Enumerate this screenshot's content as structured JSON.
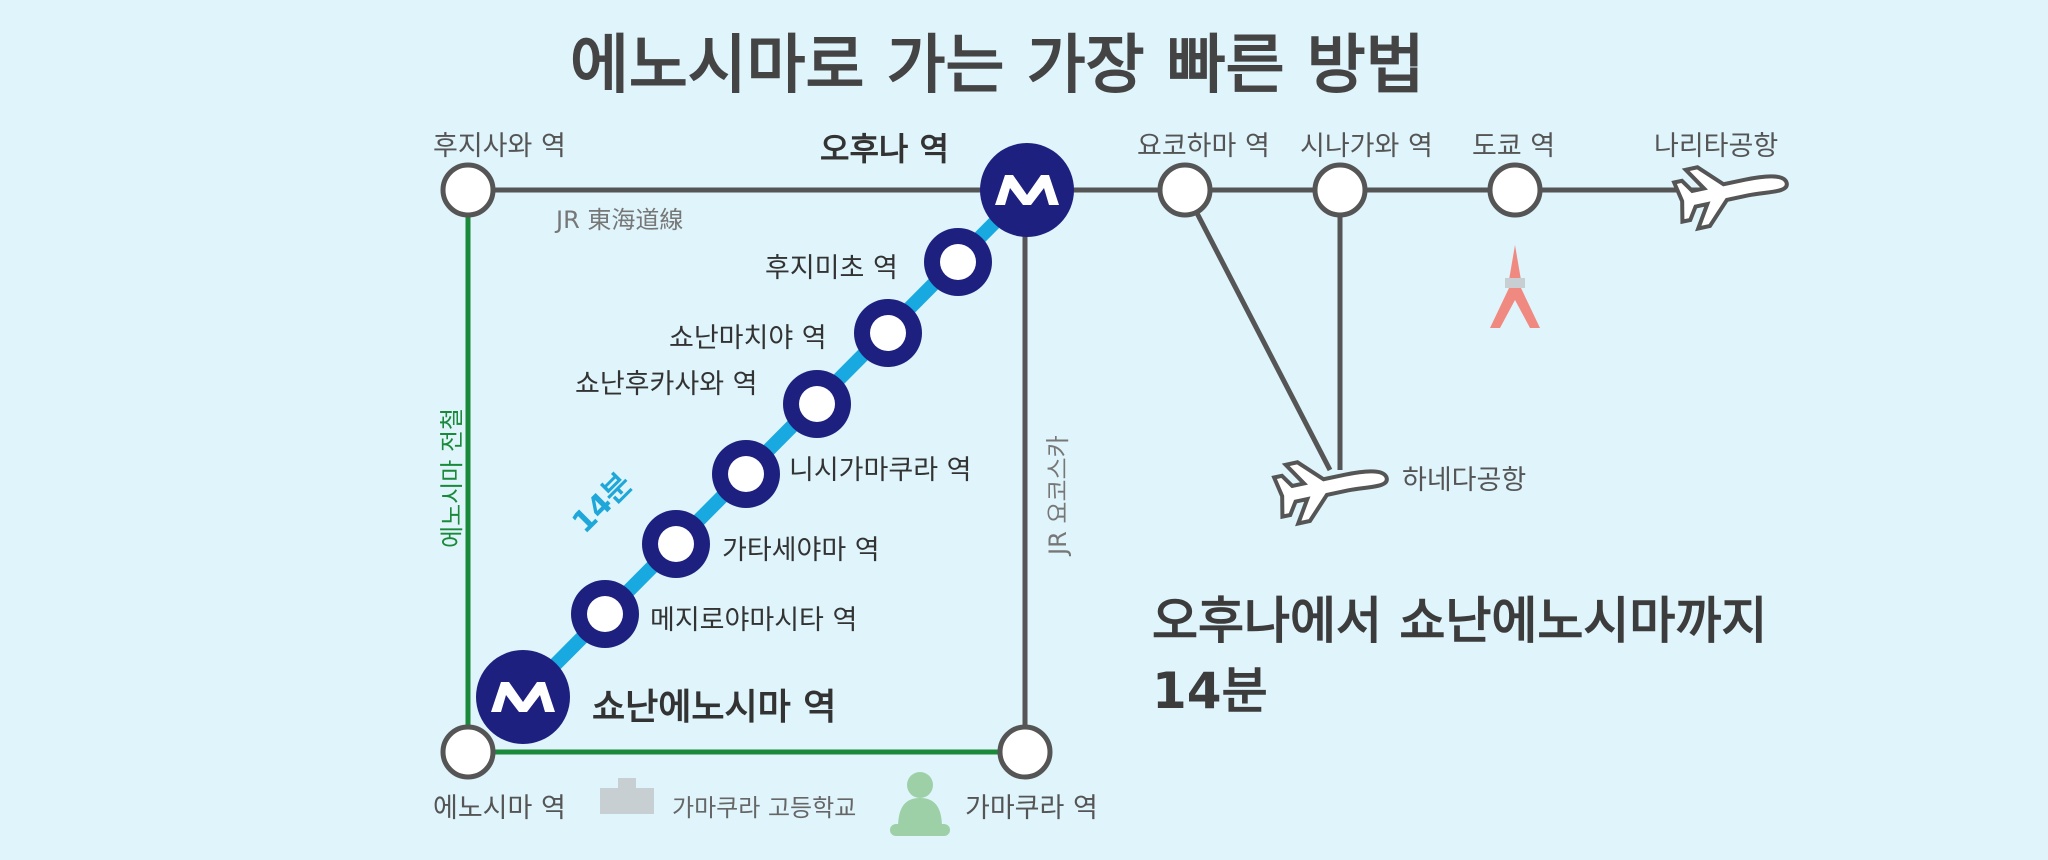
{
  "title": "에노시마로 가는 가장 빠른 방법",
  "summary": {
    "line1": "오후나에서 쇼난에노시마까지",
    "line2": "14분"
  },
  "travel_time": "14분",
  "lines": {
    "jr_tokaido": "JR 東海道線",
    "jr_yokosuka": "JR 요코스카",
    "enoden": "에노시마 전철"
  },
  "stations": {
    "fujisawa": "후지사와 역",
    "ofuna": "오후나 역",
    "yokohama": "요코하마 역",
    "shinagawa": "시나가와 역",
    "tokyo": "도쿄 역",
    "narita": "나리타공항",
    "haneda": "하네다공항",
    "fujimicho": "후지미초 역",
    "shonanmachiya": "쇼난마치야 역",
    "shonanfukasawa": "쇼난후카사와 역",
    "nishikamakura": "니시가마쿠라 역",
    "katase": "가타세야마 역",
    "mejiro": "메지로야마시타 역",
    "shonanenoshima": "쇼난에노시마 역",
    "enoshima": "에노시마 역",
    "kamakura": "가마쿠라 역"
  },
  "landmarks": {
    "school": "가마쿠라 고등학교"
  },
  "icons": {
    "monorail": "monorail-logo-icon",
    "airplane": "airplane-icon",
    "tower": "tokyo-tower-icon",
    "school": "school-building-icon",
    "buddha": "great-buddha-icon"
  },
  "colors": {
    "background": "#dff4fb",
    "rail": "#555555",
    "monorail_line": "#18a9e0",
    "monorail_station": "#1e2080",
    "enoden_line": "#1a8a3a",
    "tower": "#f08a80",
    "buddha": "#9ed0a8",
    "school": "#c8cfd3"
  }
}
